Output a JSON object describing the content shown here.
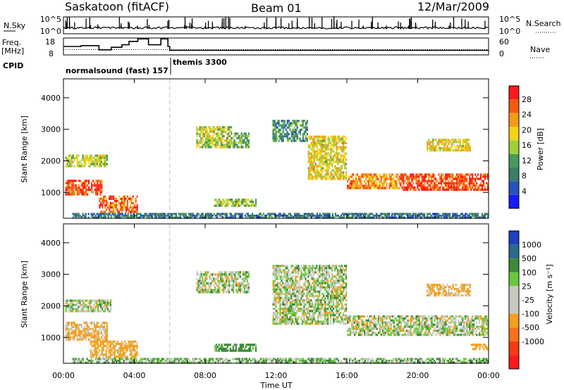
{
  "header": {
    "station": "Saskatoon (fitACF)",
    "beam": "Beam 01",
    "date": "12/Mar/2009"
  },
  "top_panels": {
    "nsky_label": "N.Sky",
    "nsky_ticks": [
      "10^5",
      "10^0"
    ],
    "nsearch_label": "N.Search",
    "nsearch_ticks": [
      "10^5",
      "10^0"
    ],
    "freq_label_1": "Freq.",
    "freq_label_2": "[MHz]",
    "freq_ticks": [
      "18",
      "8"
    ],
    "nave_label": "Nave",
    "nave_ticks": [
      "60",
      "0"
    ],
    "cpid_label": "CPID",
    "cpid_segments": [
      {
        "name": "normalsound (fast) 157",
        "start_h": 0,
        "end_h": 6.0
      },
      {
        "name": "themis 3300",
        "start_h": 6.0,
        "end_h": 24
      }
    ]
  },
  "axes": {
    "ylabel": "Slant Range [km]",
    "xlabel": "Time UT",
    "xticks": [
      "00:00",
      "04:00",
      "08:00",
      "12:00",
      "16:00",
      "20:00",
      "00:00"
    ],
    "yticks": [
      "1000",
      "2000",
      "3000",
      "4000"
    ]
  },
  "colors": {
    "power_scale": [
      "#1a1aff",
      "#2a52be",
      "#3a7d6a",
      "#4a9a5a",
      "#9fcf3a",
      "#f7d21a",
      "#f79a1a",
      "#f55a10",
      "#ff1a1a"
    ],
    "velocity_scale": [
      "#1f3fbf",
      "#2a6a8a",
      "#3a8a3a",
      "#6ac83a",
      "#c8c8c0",
      "#c8c8c0",
      "#f5a01a",
      "#f5701a",
      "#f53a10",
      "#ff1a1a"
    ]
  },
  "colorbars": {
    "power": {
      "label": "Power [dB]",
      "ticks": [
        "4",
        "8",
        "12",
        "16",
        "20",
        "24",
        "28"
      ]
    },
    "velocity": {
      "label": "Velocity [m s⁻¹]",
      "ticks": [
        "1000",
        "500",
        "100",
        "25",
        "-25",
        "-100",
        "-500",
        "-1000"
      ]
    }
  },
  "chart_data": [
    {
      "type": "line",
      "name": "N.Sky / N.Search",
      "x_range": [
        0,
        24
      ],
      "y_scale": "log",
      "ylim": [
        1,
        100000
      ]
    },
    {
      "type": "line",
      "name": "Freq / Nave",
      "x_range": [
        0,
        24
      ],
      "ylabel": "Freq. [MHz]",
      "ylim": [
        8,
        18
      ],
      "freq_steps_h": [
        0,
        1,
        2,
        2.7,
        3.3,
        3.7,
        4.2,
        4.8,
        5.5,
        5.9,
        6.0,
        24
      ],
      "freq_values_mhz": [
        13,
        13.5,
        11,
        12.5,
        14,
        16,
        17.5,
        14,
        17.5,
        13,
        10.7,
        10.5
      ]
    },
    {
      "type": "heatmap",
      "title": "Power [dB]",
      "x_range_h": [
        0,
        24
      ],
      "ylim_km": [
        180,
        4600
      ],
      "clim": [
        0,
        30
      ],
      "xlabel": "Time UT",
      "ylabel": "Slant Range [km]",
      "blobs": [
        {
          "t0": 0.1,
          "t1": 2.2,
          "r0": 900,
          "r1": 1400,
          "val": 26
        },
        {
          "t0": 0.1,
          "t1": 2.5,
          "r0": 1800,
          "r1": 2200,
          "val": 16
        },
        {
          "t0": 2.0,
          "t1": 4.2,
          "r0": 350,
          "r1": 900,
          "val": 24
        },
        {
          "t0": 7.5,
          "t1": 9.5,
          "r0": 2400,
          "r1": 3100,
          "val": 16
        },
        {
          "t0": 9.2,
          "t1": 10.5,
          "r0": 2400,
          "r1": 2900,
          "val": 12
        },
        {
          "t0": 8.5,
          "t1": 10.9,
          "r0": 550,
          "r1": 800,
          "val": 14
        },
        {
          "t0": 11.8,
          "t1": 13.8,
          "r0": 2600,
          "r1": 3300,
          "val": 10
        },
        {
          "t0": 13.8,
          "t1": 16.0,
          "r0": 1400,
          "r1": 2800,
          "val": 18
        },
        {
          "t0": 16.0,
          "t1": 19.0,
          "r0": 1100,
          "r1": 1600,
          "val": 22
        },
        {
          "t0": 19.0,
          "t1": 24.0,
          "r0": 1050,
          "r1": 1600,
          "val": 26
        },
        {
          "t0": 20.5,
          "t1": 23.0,
          "r0": 2300,
          "r1": 2700,
          "val": 18
        },
        {
          "t0": 0.5,
          "t1": 24.0,
          "r0": 180,
          "r1": 350,
          "val": 8
        }
      ]
    },
    {
      "type": "heatmap",
      "title": "Velocity [m s⁻¹]",
      "x_range_h": [
        0,
        24
      ],
      "ylim_km": [
        180,
        4600
      ],
      "clim": [
        -1000,
        1000
      ],
      "xlabel": "Time UT",
      "ylabel": "Slant Range [km]",
      "blobs": [
        {
          "t0": 0.1,
          "t1": 2.5,
          "r0": 900,
          "r1": 1500,
          "val": -150
        },
        {
          "t0": 1.5,
          "t1": 4.2,
          "r0": 350,
          "r1": 900,
          "val": -200
        },
        {
          "t0": 0.1,
          "t1": 2.7,
          "r0": 1800,
          "r1": 2200,
          "val": 0
        },
        {
          "t0": 7.5,
          "t1": 10.5,
          "r0": 2400,
          "r1": 3100,
          "val": 0
        },
        {
          "t0": 8.5,
          "t1": 10.9,
          "r0": 550,
          "r1": 800,
          "val": 150
        },
        {
          "t0": 11.8,
          "t1": 16.0,
          "r0": 1400,
          "r1": 3300,
          "val": 0
        },
        {
          "t0": 16.0,
          "t1": 24.0,
          "r0": 1050,
          "r1": 1700,
          "val": 0
        },
        {
          "t0": 20.5,
          "t1": 23.0,
          "r0": 2300,
          "r1": 2700,
          "val": -150
        },
        {
          "t0": 23.0,
          "t1": 24.0,
          "r0": 600,
          "r1": 800,
          "val": -300
        },
        {
          "t0": 0.5,
          "t1": 24.0,
          "r0": 180,
          "r1": 350,
          "val": 60
        }
      ]
    }
  ]
}
